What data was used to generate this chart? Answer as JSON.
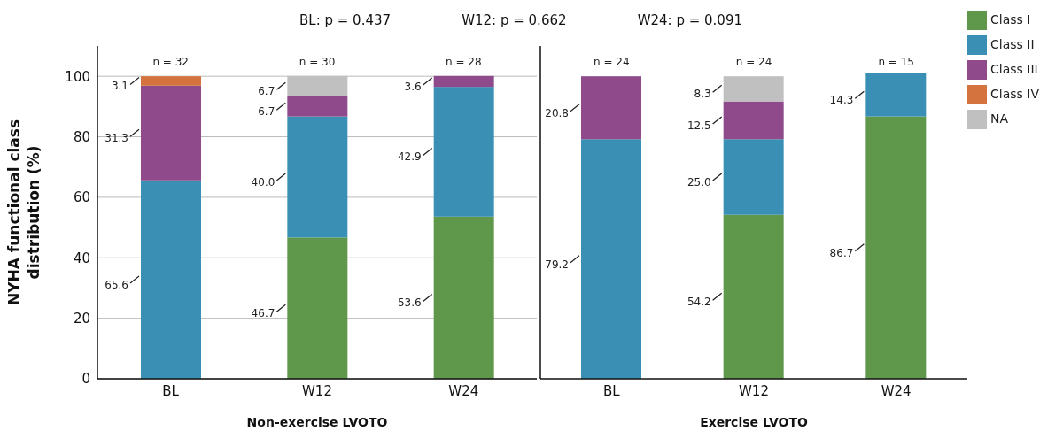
{
  "chart_data": [
    {
      "type": "bar",
      "stacked": true,
      "categories": [
        "BL",
        "W12",
        "W24"
      ],
      "xlabel": "Non-exercise LVOTO",
      "ylabel": "NYHA functional class distribution (%)",
      "ylim": [
        0,
        110
      ],
      "yticks": [
        0,
        20,
        40,
        60,
        80,
        100
      ],
      "grid": "y",
      "series": [
        {
          "color": "#5f974b",
          "values": [
            null,
            46.7,
            53.6
          ],
          "value_labels": [
            null,
            "46.7",
            "53.6"
          ]
        },
        {
          "color": "#3a8fb5",
          "values": [
            65.6,
            40.0,
            42.9
          ],
          "value_labels": [
            "65.6",
            "40.0",
            "42.9"
          ]
        },
        {
          "color": "#8e4a8b",
          "values": [
            31.3,
            6.7,
            3.6
          ],
          "value_labels": [
            "31.3",
            "6.7",
            "3.6"
          ]
        },
        {
          "color": "#d5733f",
          "values": [
            3.1,
            null,
            null
          ],
          "value_labels": [
            "3.1",
            null,
            null
          ]
        },
        {
          "color": "#c0c0c0",
          "values": [
            null,
            6.7,
            null
          ],
          "value_labels": [
            null,
            "6.7",
            null
          ]
        }
      ],
      "annotations": [
        "BL: p = 0.437",
        "W12: p = 0.662",
        "W24: p = 0.091",
        {
          "text": "n = 32",
          "x": "BL",
          "y": 100
        },
        {
          "text": "n = 30",
          "x": "W12",
          "y": 100
        },
        {
          "text": "n = 28",
          "x": "W24",
          "y": 100
        }
      ]
    },
    {
      "type": "bar",
      "stacked": true,
      "categories": [
        "BL",
        "W12",
        "W24"
      ],
      "xlabel": "Exercise LVOTO",
      "ylim": [
        0,
        110
      ],
      "yticks": [
        0,
        20,
        40,
        60,
        80,
        100
      ],
      "grid": "y",
      "tick_labels": "x",
      "legend": "top right",
      "series": [
        {
          "name": "Class I",
          "color": "#5f974b",
          "values": [
            null,
            54.2,
            86.7
          ],
          "value_labels": [
            null,
            "54.2",
            "86.7"
          ]
        },
        {
          "name": "Class II",
          "color": "#3a8fb5",
          "values": [
            79.2,
            25.0,
            14.3
          ],
          "value_labels": [
            "79.2",
            "25.0",
            "14.3"
          ]
        },
        {
          "name": "Class III",
          "color": "#8e4a8b",
          "values": [
            20.8,
            12.5,
            null
          ],
          "value_labels": [
            "20.8",
            "12.5",
            null
          ]
        },
        {
          "name": "Class IV",
          "color": "#d5733f",
          "values": [
            null,
            null,
            null
          ]
        },
        {
          "name": "NA",
          "color": "#c0c0c0",
          "values": [
            null,
            8.3,
            null
          ],
          "value_labels": [
            null,
            "8.3",
            null
          ]
        }
      ],
      "annotations": [
        {
          "text": "n = 24",
          "x": "BL",
          "y": 100
        },
        {
          "text": "n = 24",
          "x": "W12",
          "y": 100
        },
        {
          "text": "n = 15",
          "x": "W24",
          "y": 100
        }
      ]
    }
  ]
}
